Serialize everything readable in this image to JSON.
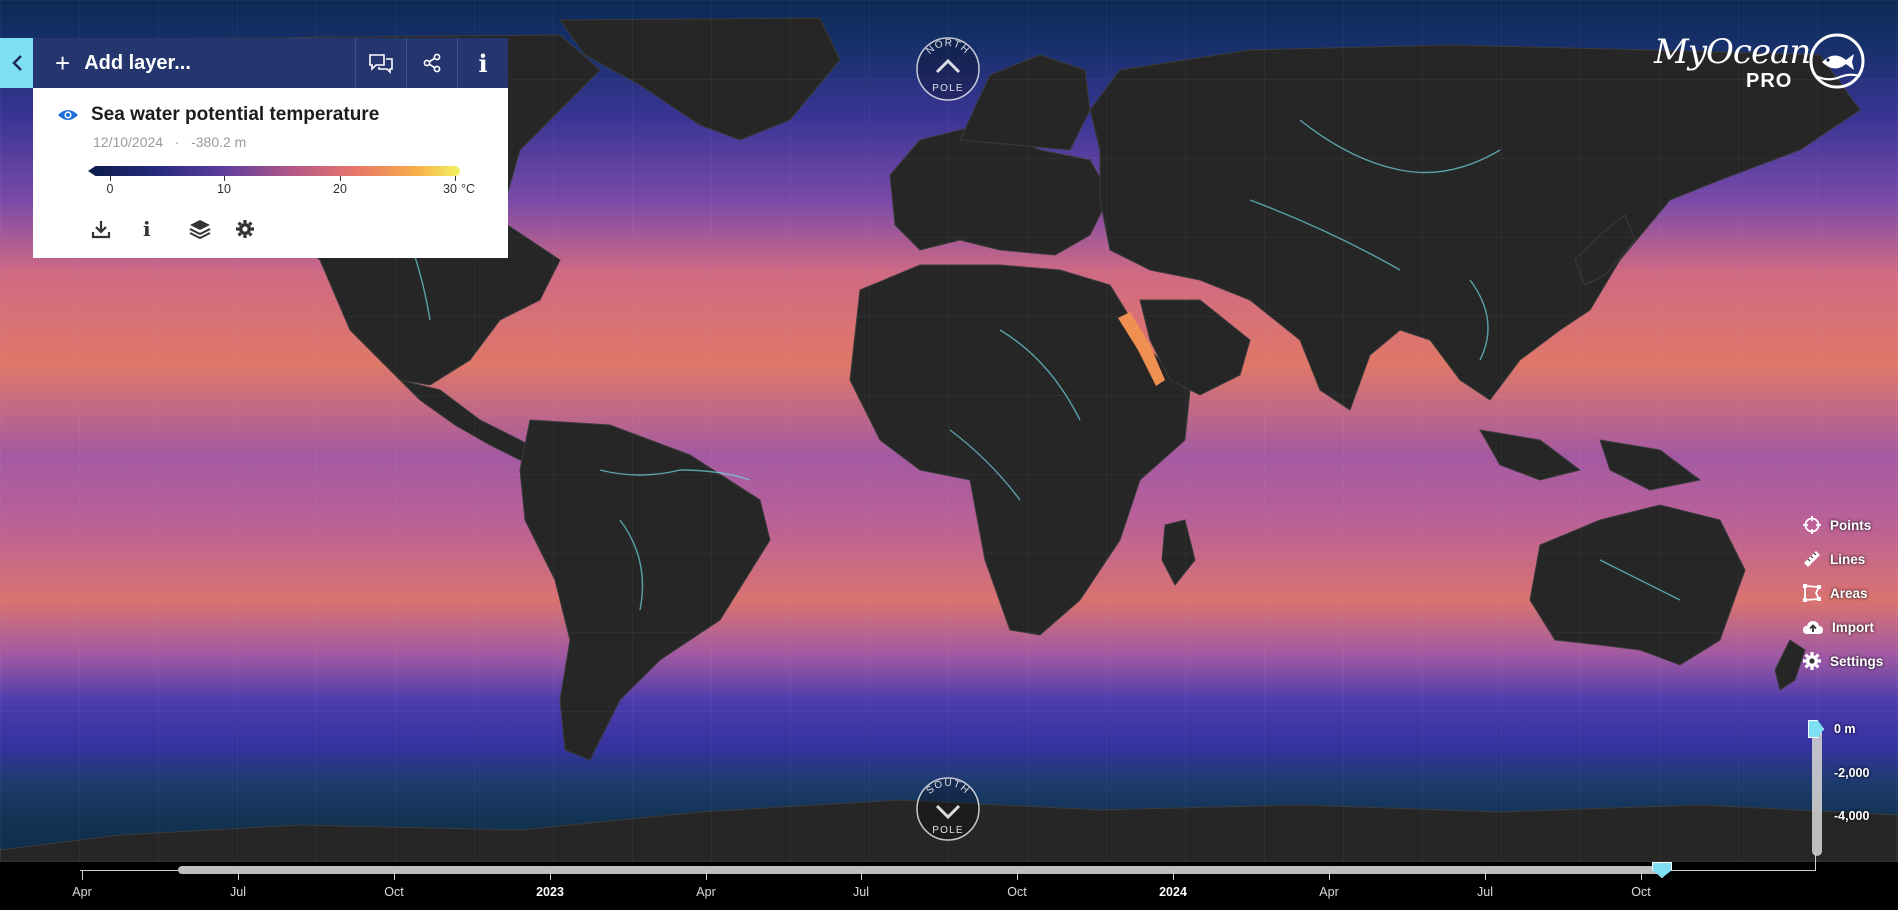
{
  "header": {
    "add_layer_label": "Add layer..."
  },
  "layer": {
    "name": "Sea water potential temperature",
    "date": "12/10/2024",
    "separator": "·",
    "depth": "-380.2 m",
    "legend": {
      "ticks": [
        "0",
        "10",
        "20",
        "30"
      ],
      "unit": "°C",
      "colors": [
        "#0a1c49",
        "#5c3d9c",
        "#e8766a",
        "#f2f361"
      ]
    }
  },
  "poles": {
    "north": "NORTH POLE",
    "south": "SOUTH POLE"
  },
  "logo": {
    "text": "MyOcean",
    "pro": "PRO"
  },
  "tools": [
    {
      "label": "Points",
      "icon": "crosshair-icon"
    },
    {
      "label": "Lines",
      "icon": "ruler-icon"
    },
    {
      "label": "Areas",
      "icon": "area-icon"
    },
    {
      "label": "Import",
      "icon": "cloud-upload-icon"
    },
    {
      "label": "Settings",
      "icon": "gear-icon"
    }
  ],
  "depth_slider": {
    "labels": [
      "0 m",
      "-2,000",
      "-4,000"
    ]
  },
  "timeline": {
    "labels": [
      "Apr",
      "Jul",
      "Oct",
      "2023",
      "Apr",
      "Jul",
      "Oct",
      "2024",
      "Apr",
      "Jul",
      "Oct"
    ],
    "year_labels": [
      "2023",
      "2024"
    ]
  },
  "colors": {
    "accent": "#7ee0f2",
    "panel_header": "#25356e",
    "land": "#262626",
    "warm_water": "#e4775f",
    "cold_water": "#2a2f8a"
  }
}
